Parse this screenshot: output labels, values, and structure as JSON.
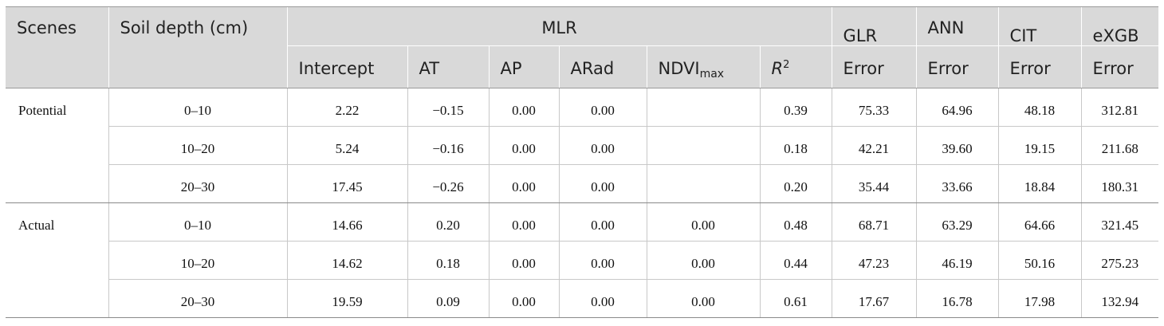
{
  "header": {
    "scenes": "Scenes",
    "soil_depth": "Soil depth (cm)",
    "mlr": "MLR",
    "glr": "GLR",
    "ann": "ANN",
    "cit": "CIT",
    "exgb": "eXGB",
    "intercept": "Intercept",
    "at": "AT",
    "ap": "AP",
    "arad": "ARad",
    "ndvi_base": "NDVI",
    "ndvi_sub": "max",
    "r2_base": "R",
    "r2_sup": "2",
    "error": "Error"
  },
  "rows": [
    {
      "scene": "Potential",
      "depth": "0–10",
      "intercept": "2.22",
      "at": "−0.15",
      "ap": "0.00",
      "arad": "0.00",
      "ndvi": "",
      "r2": "0.39",
      "glr": "75.33",
      "ann": "64.96",
      "cit": "48.18",
      "exgb": "312.81"
    },
    {
      "scene": "",
      "depth": "10–20",
      "intercept": "5.24",
      "at": "−0.16",
      "ap": "0.00",
      "arad": "0.00",
      "ndvi": "",
      "r2": "0.18",
      "glr": "42.21",
      "ann": "39.60",
      "cit": "19.15",
      "exgb": "211.68"
    },
    {
      "scene": "",
      "depth": "20–30",
      "intercept": "17.45",
      "at": "−0.26",
      "ap": "0.00",
      "arad": "0.00",
      "ndvi": "",
      "r2": "0.20",
      "glr": "35.44",
      "ann": "33.66",
      "cit": "18.84",
      "exgb": "180.31"
    },
    {
      "scene": "Actual",
      "depth": "0–10",
      "intercept": "14.66",
      "at": "0.20",
      "ap": "0.00",
      "arad": "0.00",
      "ndvi": "0.00",
      "r2": "0.48",
      "glr": "68.71",
      "ann": "63.29",
      "cit": "64.66",
      "exgb": "321.45"
    },
    {
      "scene": "",
      "depth": "10–20",
      "intercept": "14.62",
      "at": "0.18",
      "ap": "0.00",
      "arad": "0.00",
      "ndvi": "0.00",
      "r2": "0.44",
      "glr": "47.23",
      "ann": "46.19",
      "cit": "50.16",
      "exgb": "275.23"
    },
    {
      "scene": "",
      "depth": "20–30",
      "intercept": "19.59",
      "at": "0.09",
      "ap": "0.00",
      "arad": "0.00",
      "ndvi": "0.00",
      "r2": "0.61",
      "glr": "17.67",
      "ann": "16.78",
      "cit": "17.98",
      "exgb": "132.94"
    }
  ]
}
